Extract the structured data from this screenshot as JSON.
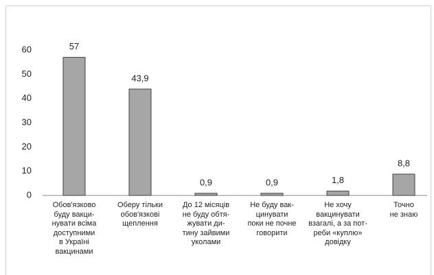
{
  "chart_data": {
    "type": "bar",
    "categories": [
      "Обов'язково\nбуду вакци-\nнувати всіма\nдоступними\nв Україні\nвакцинами",
      "Оберу тільки\nобов'язкові\nщеплення",
      "До 12 місяців\nне буду обтя-\nжувати ди-\nтину зайвими\nуколами",
      "Не буду вак-\nцинувати\nпоки не почне\nговорити",
      "Не хочу\nвакцинувати\nвзагалі, а за пот-\nреби «куплю»\nдовідку",
      "Точно\nне знаю"
    ],
    "values": [
      57,
      43.9,
      0.9,
      0.9,
      1.8,
      8.8
    ],
    "value_labels": [
      "57",
      "43,9",
      "0,9",
      "0,9",
      "1,8",
      "8,8"
    ],
    "color": "#a6a6a6",
    "ylim": [
      0,
      60
    ],
    "yticks": [
      0,
      10,
      20,
      30,
      40,
      50,
      60
    ],
    "grid": false
  }
}
